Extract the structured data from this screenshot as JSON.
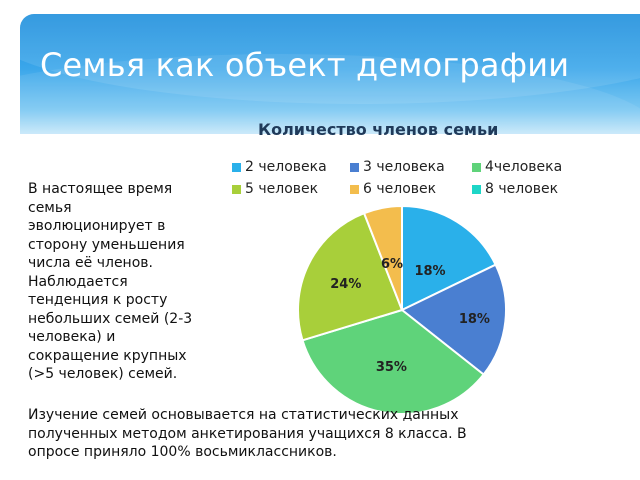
{
  "slide": {
    "title": "Семья как объект демографии",
    "side_text": [
      "В настоящее время",
      "семья",
      "эволюционирует  в",
      "сторону  уменьшения",
      "числа её членов.",
      "Наблюдается",
      "тенденция к росту",
      "небольших семей (2-3",
      "человека) и",
      "сокращение крупных",
      "(>5 человек) семей."
    ],
    "bottom_text": [
      "Изучение семей  основывается на статистических данных",
      "полученных методом анкетирования учащихся 8 класса. В",
      "опросе приняло 100% восьмиклассников."
    ]
  },
  "chart_data": {
    "type": "pie",
    "title": "Количество членов семьи",
    "legend_position": "top",
    "series": [
      {
        "name": "2 человека",
        "value": 18,
        "label": "18%",
        "color": "#2ab0ea"
      },
      {
        "name": "3 человека",
        "value": 18,
        "label": "18%",
        "color": "#4a7fd1"
      },
      {
        "name": "4человека",
        "value": 35,
        "label": "35%",
        "color": "#5fd37a"
      },
      {
        "name": "5 человек",
        "value": 24,
        "label": "24%",
        "color": "#a8cf3a"
      },
      {
        "name": "6 человек",
        "value": 6,
        "label": "6%",
        "color": "#f3bd4d"
      },
      {
        "name": "8 человек",
        "value": 0,
        "label": "",
        "color": "#1dd6c7"
      }
    ]
  }
}
